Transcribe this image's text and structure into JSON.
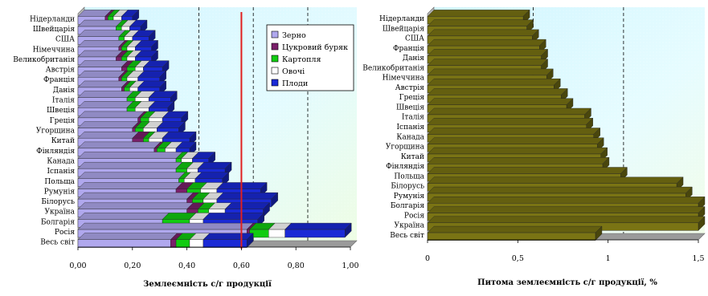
{
  "chart_data": [
    {
      "type": "bar",
      "orientation": "horizontal",
      "stacked": true,
      "categories": [
        "Нідерланди",
        "Швейцарія",
        "США",
        "Німеччина",
        "Великобританія",
        "Австрія",
        "Франція",
        "Данія",
        "Італія",
        "Швеція",
        "Греція",
        "Угорщина",
        "Китай",
        "Фінляндія",
        "Канада",
        "Іспанія",
        "Польща",
        "Румунія",
        "Білорусь",
        "Україна",
        "Болгарія",
        "Росія",
        "Весь світ"
      ],
      "series": [
        {
          "name": "Зерно",
          "color": "#b0a8ee",
          "values": [
            0.1,
            0.14,
            0.15,
            0.15,
            0.14,
            0.16,
            0.15,
            0.16,
            0.18,
            0.18,
            0.22,
            0.2,
            0.2,
            0.28,
            0.36,
            0.36,
            0.37,
            0.36,
            0.4,
            0.4,
            0.31,
            0.62,
            0.34
          ]
        },
        {
          "name": "Цукровий буряк",
          "color": "#7a1f6a",
          "values": [
            0.01,
            0.0,
            0.0,
            0.01,
            0.02,
            0.02,
            0.01,
            0.01,
            0.0,
            0.0,
            0.01,
            0.01,
            0.04,
            0.01,
            0.0,
            0.0,
            0.0,
            0.04,
            0.02,
            0.04,
            0.0,
            0.01,
            0.02
          ]
        },
        {
          "name": "Картопля",
          "color": "#11cc11",
          "values": [
            0.02,
            0.02,
            0.02,
            0.02,
            0.02,
            0.03,
            0.02,
            0.02,
            0.03,
            0.03,
            0.03,
            0.03,
            0.02,
            0.03,
            0.02,
            0.04,
            0.02,
            0.05,
            0.04,
            0.04,
            0.1,
            0.07,
            0.05
          ]
        },
        {
          "name": "Овочі",
          "color": "#ffffff",
          "values": [
            0.03,
            0.03,
            0.03,
            0.03,
            0.03,
            0.03,
            0.04,
            0.03,
            0.05,
            0.05,
            0.05,
            0.05,
            0.05,
            0.04,
            0.04,
            0.04,
            0.04,
            0.06,
            0.05,
            0.06,
            0.05,
            0.06,
            0.05
          ]
        },
        {
          "name": "Плоди",
          "color": "#1a2ad6",
          "values": [
            0.04,
            0.04,
            0.06,
            0.06,
            0.06,
            0.07,
            0.08,
            0.08,
            0.08,
            0.07,
            0.07,
            0.08,
            0.1,
            0.05,
            0.06,
            0.1,
            0.1,
            0.16,
            0.2,
            0.14,
            0.2,
            0.22,
            0.16
          ]
        }
      ],
      "xlim": [
        0,
        1.0
      ],
      "xticks": [
        "0,00",
        "0,20",
        "0,40",
        "0,60",
        "0,80",
        "1,00"
      ],
      "xlabel": "Землеємність с/г продукції",
      "reference_line": 0.6,
      "reference_line_color": "#e02020",
      "dashed_lines": [
        0.42,
        0.62,
        0.82
      ],
      "legend_position": "top-right",
      "grid": false
    },
    {
      "type": "bar",
      "orientation": "horizontal",
      "stacked": false,
      "categories": [
        "Нідерланди",
        "Швейцарія",
        "США",
        "Франція",
        "Данія",
        "Великобританія",
        "Німеччина",
        "Австрія",
        "Греція",
        "Швеція",
        "Італія",
        "Іспанія",
        "Канада",
        "Угорщина",
        "Китай",
        "Фінляндія",
        "Польща",
        "Білорусь",
        "Румунія",
        "Болгарія",
        "Росія",
        "Україна",
        "Весь світ"
      ],
      "values": [
        0.53,
        0.55,
        0.58,
        0.62,
        0.63,
        0.63,
        0.66,
        0.7,
        0.74,
        0.77,
        0.87,
        0.88,
        0.92,
        0.94,
        0.96,
        0.97,
        1.07,
        1.38,
        1.43,
        1.52,
        1.52,
        1.52,
        0.93
      ],
      "bar_color": "#7a7414",
      "xlim": [
        0,
        1.5
      ],
      "xticks": [
        "0",
        "0,5",
        "1",
        "1,5"
      ],
      "xlabel": "Питома землеємність с/г продукції, %",
      "dashed_lines": [
        0.55,
        1.05
      ],
      "grid": false
    }
  ]
}
